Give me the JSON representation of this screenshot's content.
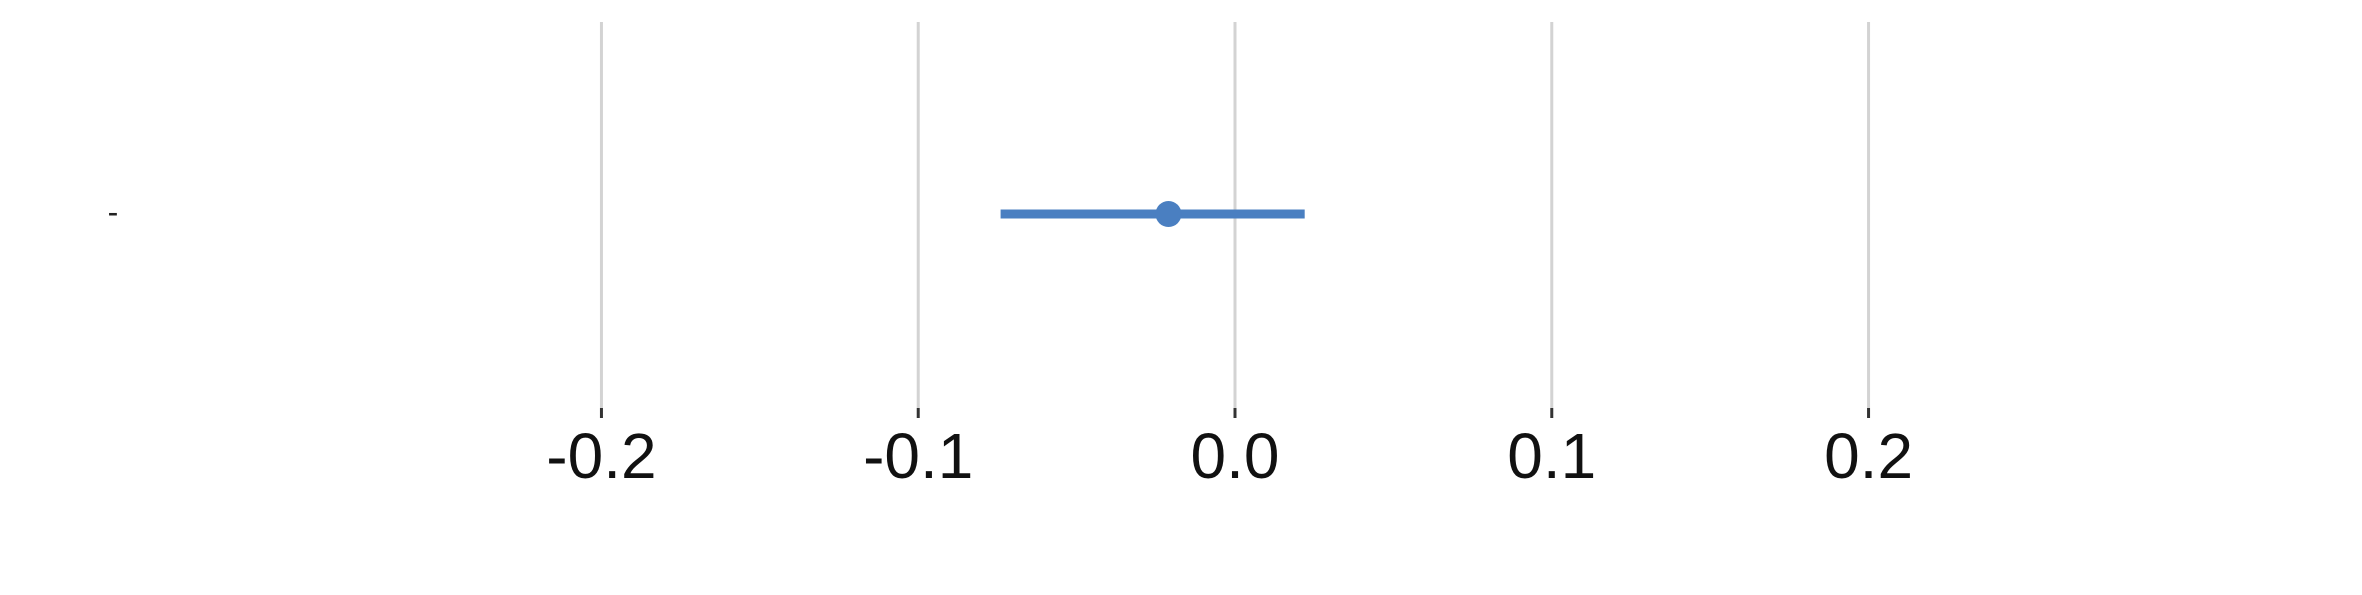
{
  "chart_data": {
    "type": "scatter",
    "subtype": "forest-plot",
    "title": "",
    "xlabel": "",
    "ylabel": "",
    "xlim": [
      -0.31,
      0.31
    ],
    "x_ticks": [
      -0.2,
      -0.1,
      0.0,
      0.1,
      0.2
    ],
    "x_tick_labels": [
      "-0.2",
      "-0.1",
      "0.0",
      "0.1",
      "0.2"
    ],
    "grid": true,
    "categories": [
      "-"
    ],
    "series": [
      {
        "name": "estimate",
        "color": "#4a7fc1",
        "points": [
          {
            "category": "-",
            "estimate": -0.021,
            "ci_low": -0.074,
            "ci_high": 0.022
          }
        ]
      }
    ]
  }
}
